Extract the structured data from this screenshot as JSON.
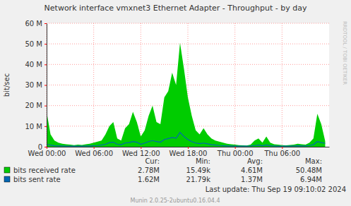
{
  "chart_data": {
    "type": "line",
    "title": "Network interface vmxnet3 Ethernet Adapter - Throughput - by day",
    "y_label": "bit/sec",
    "x": [
      0,
      0.5,
      1,
      1.5,
      2,
      2.5,
      3,
      3.5,
      4,
      4.5,
      5,
      5.5,
      6,
      6.5,
      7,
      7.5,
      8,
      8.5,
      9,
      9.5,
      10,
      10.5,
      11,
      11.5,
      12,
      12.5,
      13,
      13.5,
      14,
      14.5,
      15,
      15.5,
      16,
      16.5,
      17,
      17.5,
      18,
      18.5,
      19,
      19.5,
      20,
      20.5,
      21,
      21.5,
      22,
      22.5,
      23,
      23.5,
      24,
      24.5,
      25,
      25.5,
      26,
      26.5,
      27,
      27.5,
      28,
      28.5,
      29,
      29.5,
      30,
      30.5,
      31,
      31.5,
      32,
      32.5,
      33,
      33.5,
      34,
      34.5,
      35,
      35.5
    ],
    "xlim": [
      0,
      36
    ],
    "xticks": [
      {
        "value": 0,
        "label": "Wed 00:00"
      },
      {
        "value": 6,
        "label": "Wed 06:00"
      },
      {
        "value": 12,
        "label": "Wed 12:00"
      },
      {
        "value": 18,
        "label": "Wed 18:00"
      },
      {
        "value": 24,
        "label": "Thu 00:00"
      },
      {
        "value": 30,
        "label": "Thu 06:00"
      }
    ],
    "ylim": [
      0,
      60
    ],
    "yticks": [
      0,
      {
        "value": 10,
        "label": "10 M"
      },
      {
        "value": 20,
        "label": "20 M"
      },
      {
        "value": 30,
        "label": "30 M"
      },
      {
        "value": 40,
        "label": "40 M"
      },
      {
        "value": 50,
        "label": "50 M"
      },
      {
        "value": 60,
        "label": "60 M"
      }
    ],
    "grid": true,
    "stats_columns": [
      "Cur:",
      "Min:",
      "Avg:",
      "Max:"
    ],
    "series": [
      {
        "name": "bits received rate",
        "color": "#00CC00",
        "type": "area",
        "stats": [
          "2.78M",
          "15.49k",
          "4.61M",
          "50.48M"
        ],
        "values": [
          17,
          6,
          3,
          2,
          1.5,
          1.2,
          1,
          0.8,
          1,
          0.9,
          1.2,
          1.5,
          2,
          2.5,
          3,
          6,
          10,
          12,
          4,
          3,
          9,
          11,
          17,
          12,
          5,
          8,
          15,
          20,
          12,
          11,
          24,
          27,
          36,
          30,
          50.48,
          38,
          24,
          15,
          8,
          6,
          9,
          6,
          4,
          3,
          2.5,
          2,
          1.5,
          1.2,
          1,
          0.8,
          0.7,
          0.6,
          1,
          3,
          4,
          2,
          5,
          2,
          1.2,
          1,
          0.8,
          0.7,
          0.9,
          1,
          1.5,
          1.2,
          1,
          2,
          4,
          16,
          11,
          2.78
        ]
      },
      {
        "name": "bits sent rate",
        "color": "#0066B3",
        "type": "line",
        "stats": [
          "1.62M",
          "21.79k",
          "1.37M",
          "6.94M"
        ],
        "values": [
          1.2,
          0.8,
          0.5,
          0.4,
          0.4,
          0.3,
          0.3,
          0.3,
          0.3,
          0.3,
          0.4,
          0.4,
          0.5,
          0.6,
          0.8,
          1.2,
          2,
          2.2,
          1.2,
          1,
          1.8,
          2,
          2.5,
          2.2,
          1.2,
          1.8,
          2.5,
          3,
          2.5,
          2.2,
          3.5,
          4,
          4.5,
          4.2,
          6.94,
          5,
          3.5,
          2.5,
          1.8,
          1.5,
          1.8,
          1.4,
          1,
          0.8,
          0.6,
          0.5,
          0.4,
          0.4,
          0.3,
          0.3,
          0.3,
          0.3,
          0.4,
          0.6,
          0.8,
          0.5,
          0.9,
          0.5,
          0.4,
          0.3,
          0.3,
          0.3,
          0.3,
          0.4,
          0.5,
          0.4,
          0.4,
          0.6,
          1,
          2.5,
          2,
          1.62
        ]
      }
    ],
    "annotations": [
      "Last update: Thu Sep 19 09:10:02 2024",
      "Munin 2.0.25-2ubuntu0.16.04.4",
      "RRDTOOL / TOBI OETIKER"
    ]
  }
}
